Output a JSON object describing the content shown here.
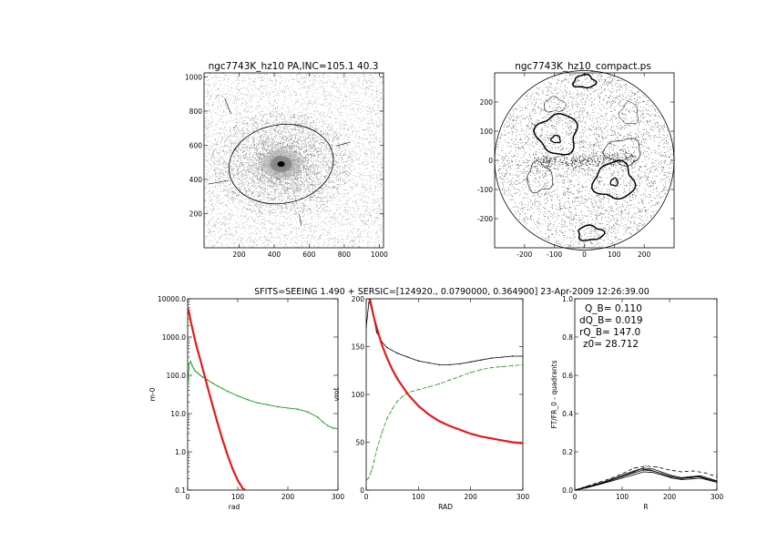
{
  "figure": {
    "suptitle": "SFITS=SEEING 1.490 + SERSIC=[124920., 0.0790000, 0.364900]  23-Apr-2009 12:26:39.00"
  },
  "chart_data": [
    {
      "id": "image",
      "type": "scatter",
      "title": "ngc7743K_hz10 PA,INC=105.1 40.3",
      "xlabel": "",
      "ylabel": "",
      "xlim": [
        0,
        1024
      ],
      "ylim": [
        0,
        1024
      ],
      "xticks": [
        200,
        400,
        600,
        800,
        1000
      ],
      "yticks": [
        200,
        400,
        600,
        800,
        1000
      ],
      "center": [
        440,
        490
      ],
      "ellipse": {
        "semi_major": 300,
        "semi_minor": 230,
        "pa_deg": 105.1
      }
    },
    {
      "id": "compact",
      "type": "scatter",
      "title": "ngc7743K_hz10_compact.ps",
      "xlabel": "",
      "ylabel": "",
      "xlim": [
        -300,
        300
      ],
      "ylim": [
        -300,
        300
      ],
      "xticks": [
        -200,
        -100,
        0,
        100,
        200
      ],
      "yticks": [
        -200,
        -100,
        0,
        100,
        200
      ],
      "radius": 300
    },
    {
      "id": "profile",
      "type": "line",
      "xlabel": "rad",
      "ylabel": "m-0",
      "xlim": [
        0,
        300
      ],
      "ylim": [
        0.1,
        10000
      ],
      "yscale": "log",
      "xticks": [
        0,
        100,
        200,
        300
      ],
      "yticks": [
        "10000.0",
        "1000.0",
        "100.0",
        "10.0",
        "1.0",
        "0.1"
      ],
      "series": [
        {
          "color": "#1a9a1a",
          "x": [
            0,
            3,
            6,
            9,
            12,
            15,
            20,
            25,
            30,
            40,
            50,
            60,
            70,
            80,
            100,
            120,
            140,
            160,
            180,
            200,
            220,
            240,
            260,
            270,
            280,
            290,
            300
          ],
          "y": [
            50,
            200,
            230,
            180,
            150,
            130,
            115,
            100,
            90,
            75,
            62,
            52,
            45,
            38,
            29,
            23,
            19,
            17,
            15,
            14,
            13,
            11,
            8,
            6,
            4.8,
            4.2,
            4
          ]
        },
        {
          "color": "#e41a1c",
          "x": [
            0,
            3,
            6,
            9,
            12,
            15,
            20,
            25,
            30,
            40,
            50,
            60,
            70,
            80,
            90,
            100,
            110,
            115
          ],
          "y": [
            6000,
            4200,
            2600,
            1800,
            1200,
            800,
            450,
            260,
            150,
            48,
            16,
            5.5,
            2.0,
            0.8,
            0.35,
            0.18,
            0.11,
            0.1
          ]
        }
      ]
    },
    {
      "id": "rotation",
      "type": "line",
      "xlabel": "RAD",
      "ylabel": "vrot",
      "xlim": [
        0,
        300
      ],
      "ylim": [
        0,
        200
      ],
      "xticks": [
        0,
        100,
        200,
        300
      ],
      "yticks": [
        0,
        50,
        100,
        150,
        200
      ],
      "series": [
        {
          "color": "#000000",
          "x": [
            0,
            5,
            8,
            12,
            15,
            20,
            30,
            40,
            60,
            80,
            100,
            120,
            140,
            160,
            180,
            200,
            220,
            240,
            260,
            280,
            300
          ],
          "y": [
            170,
            196,
            200,
            190,
            178,
            165,
            155,
            149,
            143,
            139,
            135,
            133,
            131,
            131,
            132,
            134,
            136,
            138,
            139,
            140,
            140
          ]
        },
        {
          "color": "#1a9a1a",
          "x": [
            0,
            5,
            10,
            15,
            20,
            30,
            40,
            50,
            60,
            70,
            80,
            100,
            120,
            140,
            160,
            180,
            200,
            220,
            240,
            260,
            280,
            300
          ],
          "y": [
            10,
            13,
            20,
            30,
            42,
            60,
            75,
            85,
            93,
            98,
            102,
            105,
            108,
            111,
            115,
            119,
            123,
            126,
            128,
            129,
            130,
            131
          ]
        },
        {
          "color": "#e41a1c",
          "x": [
            0,
            3,
            6,
            10,
            15,
            20,
            30,
            40,
            50,
            60,
            80,
            100,
            120,
            140,
            160,
            180,
            200,
            220,
            240,
            260,
            280,
            300
          ],
          "y": [
            200,
            205,
            200,
            192,
            180,
            170,
            152,
            138,
            126,
            116,
            100,
            88,
            79,
            72,
            67,
            63,
            59,
            56,
            54,
            52,
            50,
            49
          ]
        }
      ]
    },
    {
      "id": "torque",
      "type": "line",
      "xlabel": "R",
      "ylabel": "FT/FR_0 - quadrants",
      "xlim": [
        0,
        300
      ],
      "ylim": [
        0,
        1.0
      ],
      "xticks": [
        0,
        100,
        200,
        300
      ],
      "yticks": [
        "0.0",
        "0.2",
        "0.4",
        "0.6",
        "0.8",
        "1.0"
      ],
      "annotations": [
        "Q_B=  0.110",
        "dQ_B=  0.019",
        "rQ_B=  147.0",
        "z0= 28.712"
      ],
      "series": [
        {
          "color": "#000000",
          "x": [
            0,
            25,
            50,
            75,
            100,
            125,
            145,
            165,
            185,
            205,
            225,
            245,
            265,
            285,
            300
          ],
          "y": [
            0,
            0.015,
            0.03,
            0.05,
            0.07,
            0.09,
            0.105,
            0.1,
            0.085,
            0.07,
            0.06,
            0.065,
            0.07,
            0.055,
            0.045
          ]
        },
        {
          "color": "#000000",
          "x": [
            0,
            25,
            50,
            75,
            100,
            125,
            145,
            165,
            185,
            205,
            225,
            245,
            265,
            285,
            300
          ],
          "y": [
            0,
            0.012,
            0.028,
            0.045,
            0.063,
            0.08,
            0.095,
            0.092,
            0.078,
            0.063,
            0.055,
            0.058,
            0.062,
            0.05,
            0.04
          ]
        },
        {
          "color": "#000000",
          "x": [
            0,
            25,
            50,
            75,
            100,
            125,
            145,
            165,
            185,
            205,
            225,
            245,
            265,
            285,
            300
          ],
          "y": [
            0,
            0.018,
            0.034,
            0.055,
            0.078,
            0.1,
            0.115,
            0.11,
            0.093,
            0.076,
            0.065,
            0.07,
            0.075,
            0.06,
            0.048
          ]
        },
        {
          "color": "#000000",
          "x": [
            0,
            25,
            50,
            75,
            100,
            125,
            140,
            160,
            180,
            200,
            220,
            240,
            260,
            280,
            300
          ],
          "y": [
            0,
            0.014,
            0.032,
            0.05,
            0.072,
            0.095,
            0.11,
            0.105,
            0.088,
            0.072,
            0.062,
            0.066,
            0.071,
            0.057,
            0.045
          ]
        },
        {
          "color": "#000000",
          "dash": true,
          "x": [
            0,
            25,
            50,
            75,
            100,
            125,
            150,
            175,
            200,
            225,
            250,
            275,
            300
          ],
          "y": [
            0,
            0.02,
            0.04,
            0.06,
            0.085,
            0.115,
            0.125,
            0.12,
            0.105,
            0.095,
            0.1,
            0.09,
            0.07
          ]
        }
      ]
    }
  ]
}
